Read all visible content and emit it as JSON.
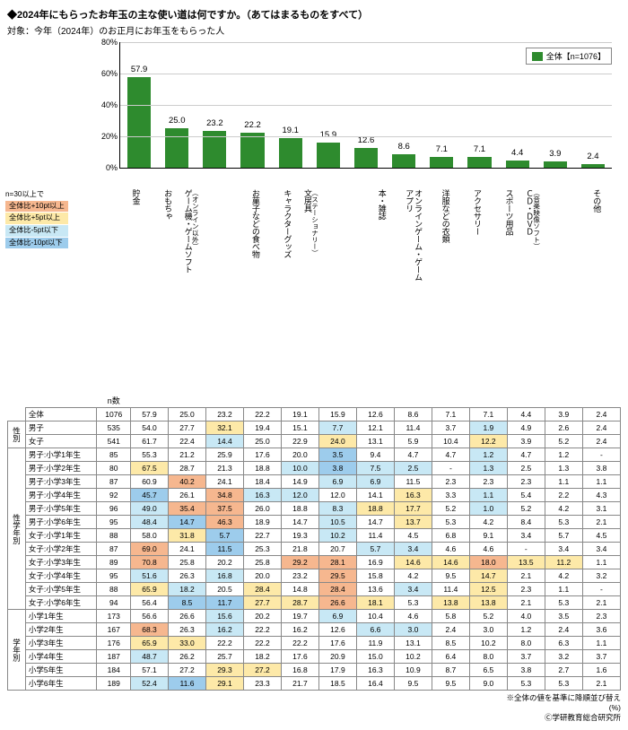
{
  "title": "◆2024年にもらったお年玉の主な使い道は何ですか。（あてはまるものをすべて）",
  "subtitle": "対象：今年（2024年）のお正月にお年玉をもらった人",
  "legend_label": "全体【n=1076】",
  "bar_color": "#2e8b2e",
  "ymax": 80,
  "ytick_step": 20,
  "grid_color": "#cccccc",
  "categories": [
    {
      "label": "貯金",
      "sub": ""
    },
    {
      "label": "おもちゃ",
      "sub": ""
    },
    {
      "label": "ゲーム機・ゲームソフト",
      "sub": "（オンライン以外）"
    },
    {
      "label": "お菓子などの食べ物",
      "sub": ""
    },
    {
      "label": "キャラクターグッズ",
      "sub": ""
    },
    {
      "label": "文房具",
      "sub": "（ステーショナリー）"
    },
    {
      "label": "本・雑誌",
      "sub": ""
    },
    {
      "label": "オンラインゲーム・ゲームアプリ",
      "sub": ""
    },
    {
      "label": "洋服などの衣類",
      "sub": ""
    },
    {
      "label": "アクセサリー",
      "sub": ""
    },
    {
      "label": "スポーツ用品",
      "sub": ""
    },
    {
      "label": "ＣＤ・ＤＶＤ",
      "sub": "（音楽映像ソフト）"
    },
    {
      "label": "その他",
      "sub": ""
    }
  ],
  "overall_values": [
    57.9,
    25.0,
    23.2,
    22.2,
    19.1,
    15.9,
    12.6,
    8.6,
    7.1,
    7.1,
    4.4,
    3.9,
    2.4
  ],
  "threshold_note": "n=30以上で",
  "thresholds": [
    {
      "label": "全体比+10pt以上",
      "color": "#f6b78f"
    },
    {
      "label": "全体比+5pt以上",
      "color": "#fde9a8"
    },
    {
      "label": "全体比-5pt以下",
      "color": "#c8e8f5"
    },
    {
      "label": "全体比-10pt以下",
      "color": "#9dccec"
    }
  ],
  "n_label": "n数",
  "groups": [
    {
      "label": "",
      "rows": [
        "全体"
      ]
    },
    {
      "label": "性別",
      "rows": [
        "男子",
        "女子"
      ]
    },
    {
      "label": "性学年別",
      "rows": [
        "男子:小学1年生",
        "男子:小学2年生",
        "男子:小学3年生",
        "男子:小学4年生",
        "男子:小学5年生",
        "男子:小学6年生",
        "女子:小学1年生",
        "女子:小学2年生",
        "女子:小学3年生",
        "女子:小学4年生",
        "女子:小学5年生",
        "女子:小学6年生"
      ]
    },
    {
      "label": "学年別",
      "rows": [
        "小学1年生",
        "小学2年生",
        "小学3年生",
        "小学4年生",
        "小学5年生",
        "小学6年生"
      ]
    }
  ],
  "rows": {
    "全体": {
      "n": 1076,
      "v": [
        57.9,
        25.0,
        23.2,
        22.2,
        19.1,
        15.9,
        12.6,
        8.6,
        7.1,
        7.1,
        4.4,
        3.9,
        2.4
      ]
    },
    "男子": {
      "n": 535,
      "v": [
        54.0,
        27.7,
        32.1,
        19.4,
        15.1,
        7.7,
        12.1,
        11.4,
        3.7,
        1.9,
        4.9,
        2.6,
        2.4
      ]
    },
    "女子": {
      "n": 541,
      "v": [
        61.7,
        22.4,
        14.4,
        25.0,
        22.9,
        24.0,
        13.1,
        5.9,
        10.4,
        12.2,
        3.9,
        5.2,
        2.4
      ]
    },
    "男子:小学1年生": {
      "n": 85,
      "v": [
        55.3,
        21.2,
        25.9,
        17.6,
        20.0,
        3.5,
        9.4,
        4.7,
        4.7,
        1.2,
        4.7,
        1.2,
        "-"
      ]
    },
    "男子:小学2年生": {
      "n": 80,
      "v": [
        67.5,
        28.7,
        21.3,
        18.8,
        10.0,
        3.8,
        7.5,
        2.5,
        "-",
        1.3,
        2.5,
        1.3,
        3.8
      ]
    },
    "男子:小学3年生": {
      "n": 87,
      "v": [
        60.9,
        40.2,
        24.1,
        18.4,
        14.9,
        6.9,
        6.9,
        11.5,
        2.3,
        2.3,
        2.3,
        1.1,
        1.1
      ]
    },
    "男子:小学4年生": {
      "n": 92,
      "v": [
        45.7,
        26.1,
        34.8,
        16.3,
        12.0,
        12.0,
        14.1,
        16.3,
        3.3,
        1.1,
        5.4,
        2.2,
        4.3
      ]
    },
    "男子:小学5年生": {
      "n": 96,
      "v": [
        49.0,
        35.4,
        37.5,
        26.0,
        18.8,
        8.3,
        18.8,
        17.7,
        5.2,
        1.0,
        5.2,
        4.2,
        3.1
      ]
    },
    "男子:小学6年生": {
      "n": 95,
      "v": [
        48.4,
        14.7,
        46.3,
        18.9,
        14.7,
        10.5,
        14.7,
        13.7,
        5.3,
        4.2,
        8.4,
        5.3,
        2.1
      ]
    },
    "女子:小学1年生": {
      "n": 88,
      "v": [
        58.0,
        31.8,
        5.7,
        22.7,
        19.3,
        10.2,
        11.4,
        4.5,
        6.8,
        9.1,
        3.4,
        5.7,
        4.5
      ]
    },
    "女子:小学2年生": {
      "n": 87,
      "v": [
        69.0,
        24.1,
        11.5,
        25.3,
        21.8,
        20.7,
        5.7,
        3.4,
        4.6,
        4.6,
        "-",
        3.4,
        3.4
      ]
    },
    "女子:小学3年生": {
      "n": 89,
      "v": [
        70.8,
        25.8,
        20.2,
        25.8,
        29.2,
        28.1,
        16.9,
        14.6,
        14.6,
        18.0,
        13.5,
        11.2,
        1.1
      ]
    },
    "女子:小学4年生": {
      "n": 95,
      "v": [
        51.6,
        26.3,
        16.8,
        20.0,
        23.2,
        29.5,
        15.8,
        4.2,
        9.5,
        14.7,
        2.1,
        4.2,
        3.2
      ]
    },
    "女子:小学5年生": {
      "n": 88,
      "v": [
        65.9,
        18.2,
        20.5,
        28.4,
        14.8,
        28.4,
        13.6,
        3.4,
        11.4,
        12.5,
        2.3,
        1.1,
        "-"
      ]
    },
    "女子:小学6年生": {
      "n": 94,
      "v": [
        56.4,
        8.5,
        11.7,
        27.7,
        28.7,
        26.6,
        18.1,
        5.3,
        13.8,
        13.8,
        2.1,
        5.3,
        2.1
      ]
    },
    "小学1年生": {
      "n": 173,
      "v": [
        56.6,
        26.6,
        15.6,
        20.2,
        19.7,
        6.9,
        10.4,
        4.6,
        5.8,
        5.2,
        4.0,
        3.5,
        2.3
      ]
    },
    "小学2年生": {
      "n": 167,
      "v": [
        68.3,
        26.3,
        16.2,
        22.2,
        16.2,
        12.6,
        6.6,
        3.0,
        2.4,
        3.0,
        1.2,
        2.4,
        3.6
      ]
    },
    "小学3年生": {
      "n": 176,
      "v": [
        65.9,
        33.0,
        22.2,
        22.2,
        22.2,
        17.6,
        11.9,
        13.1,
        8.5,
        10.2,
        8.0,
        6.3,
        1.1
      ]
    },
    "小学4年生": {
      "n": 187,
      "v": [
        48.7,
        26.2,
        25.7,
        18.2,
        17.6,
        20.9,
        15.0,
        10.2,
        6.4,
        8.0,
        3.7,
        3.2,
        3.7
      ]
    },
    "小学5年生": {
      "n": 184,
      "v": [
        57.1,
        27.2,
        29.3,
        27.2,
        16.8,
        17.9,
        16.3,
        10.9,
        8.7,
        6.5,
        3.8,
        2.7,
        1.6
      ]
    },
    "小学6年生": {
      "n": 189,
      "v": [
        52.4,
        11.6,
        29.1,
        23.3,
        21.7,
        18.5,
        16.4,
        9.5,
        9.5,
        9.0,
        5.3,
        5.3,
        2.1
      ]
    }
  },
  "footer1": "※全体の値を基準に降順並び替え",
  "footer_pct": "(%)",
  "footer2": "Ⓒ学研教育総合研究所"
}
